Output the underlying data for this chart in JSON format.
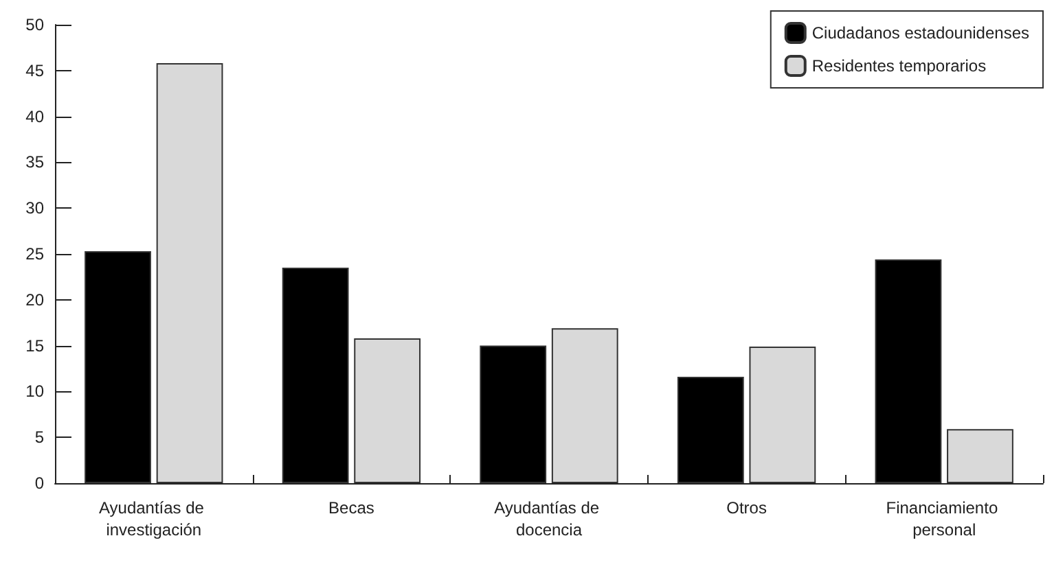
{
  "chart_data": {
    "type": "bar",
    "categories": [
      "Ayudantías de investigación",
      "Becas",
      "Ayudantías de docencia",
      "Otros",
      "Financiamiento personal"
    ],
    "series": [
      {
        "name": "Ciudadanos estadounidenses",
        "color": "#000000",
        "values": [
          25.3,
          23.5,
          15,
          11.6,
          24.4
        ]
      },
      {
        "name": "Residentes temporarios",
        "color": "#d9d9d9",
        "values": [
          45.8,
          15.8,
          16.9,
          14.9,
          5.9
        ]
      }
    ],
    "ylim": [
      0,
      50
    ],
    "yticks": [
      0,
      5,
      10,
      15,
      20,
      25,
      30,
      35,
      40,
      45,
      50
    ],
    "grid": false,
    "legend": "top right"
  }
}
